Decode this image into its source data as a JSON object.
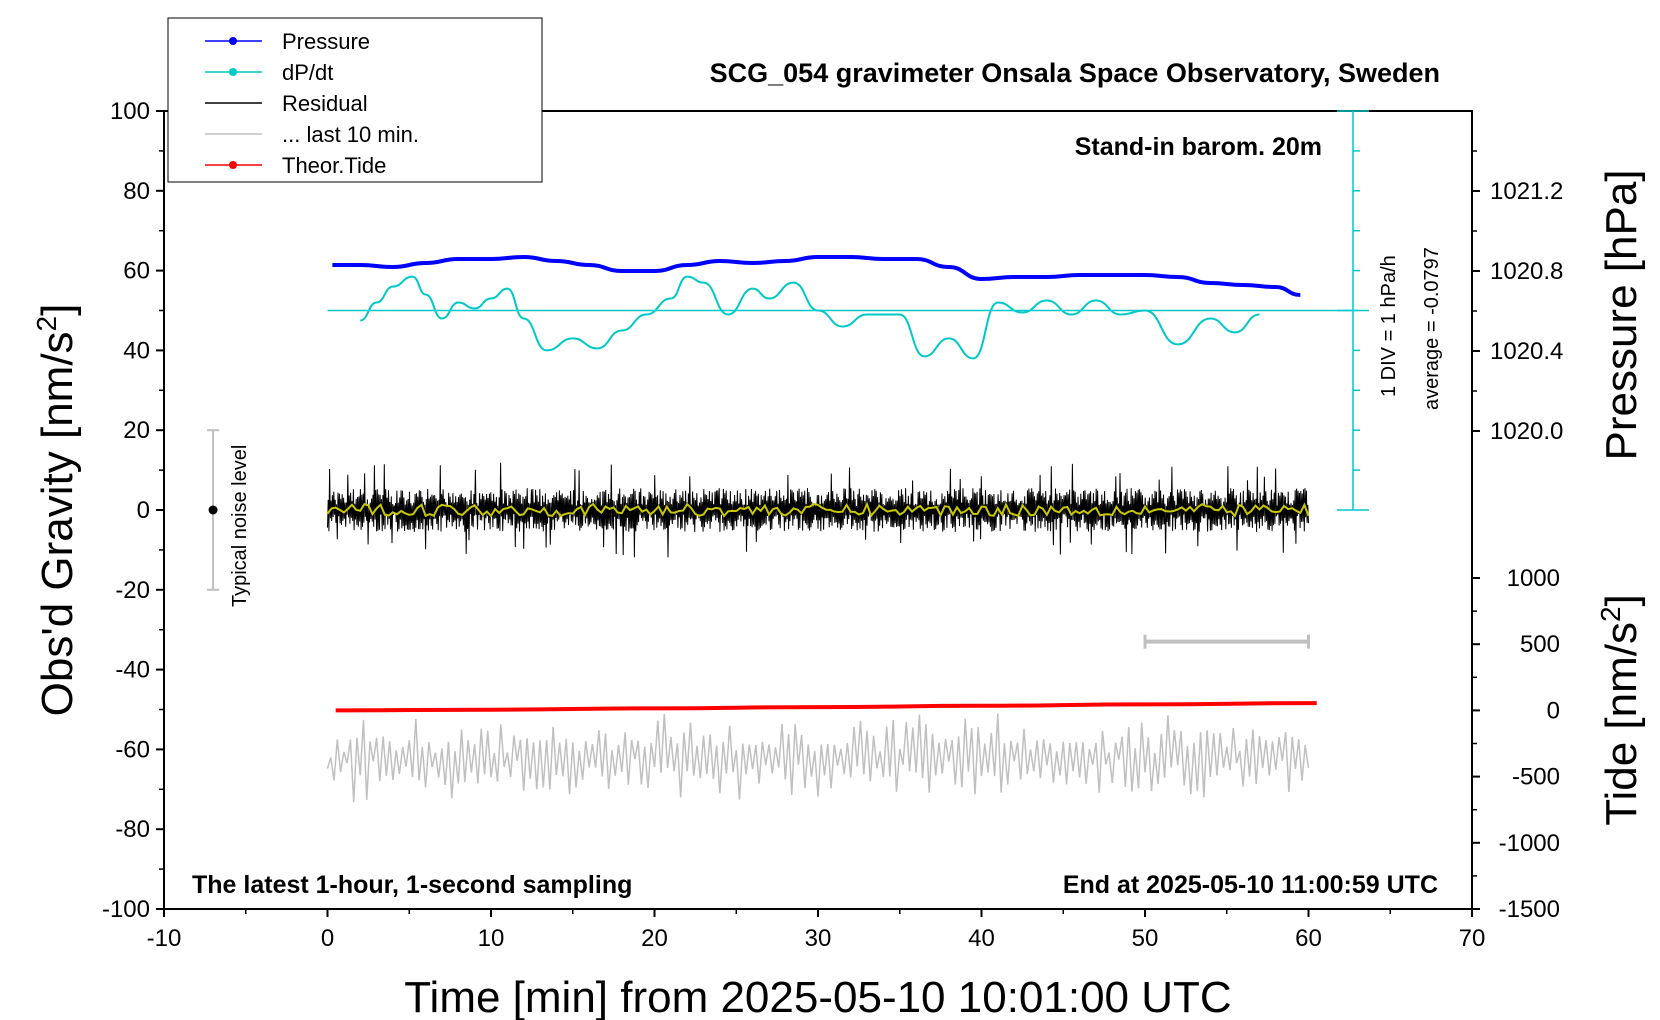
{
  "chart_data": {
    "type": "line",
    "title": "SCG_054 gravimeter Onsala Space Observatory, Sweden",
    "xlabel": "Time [min] from 2025-05-10 10:01:00 UTC",
    "ylabel_left": "Obs'd Gravity [nm/s",
    "ylabel_left_sup": "2",
    "ylabel_left_end": "]",
    "ylabel_right_top": "Pressure [hPa]",
    "ylabel_right_bottom": "Tide [nm/s",
    "ylabel_right_bottom_sup": "2",
    "ylabel_right_bottom_end": "]",
    "xlim": [
      -10,
      70
    ],
    "ylim_left": [
      -100,
      100
    ],
    "x_ticks": [
      "-10",
      "0",
      "10",
      "20",
      "30",
      "40",
      "50",
      "60",
      "70"
    ],
    "y_ticks_left": [
      "100",
      "80",
      "60",
      "40",
      "20",
      "0",
      "-20",
      "-40",
      "-60",
      "-80",
      "-100"
    ],
    "pressure_ticks": [
      "1021.2",
      "1020.8",
      "1020.4",
      "1020.0"
    ],
    "tide_ticks": [
      "1000",
      "500",
      "0",
      "-500",
      "-1000",
      "-1500"
    ],
    "legend": {
      "position": "top-left",
      "entries": [
        {
          "label": "Pressure",
          "color": "#0000ff",
          "marker": true
        },
        {
          "label": "dP/dt",
          "color": "#00c8c8",
          "marker": true
        },
        {
          "label": "Residual",
          "color": "#000000",
          "marker": false
        },
        {
          "label": "... last 10 min.",
          "color": "#c0c0c0",
          "marker": false
        },
        {
          "label": "Theor.Tide",
          "color": "#ff0000",
          "marker": true
        }
      ]
    },
    "annotations": {
      "barometer": "Stand-in barom. 20m",
      "dpdt_scale": "1 DIV = 1 hPa/h",
      "dpdt_average": "average = -0.0797",
      "noise_label": "Typical noise level",
      "bottom_left": "The latest 1-hour, 1-second sampling",
      "bottom_right": "End at 2025-05-10 11:00:59 UTC"
    },
    "series": [
      {
        "name": "Pressure",
        "color": "#0000ff",
        "axis": "pressure",
        "x": [
          0.3,
          2,
          4,
          6,
          8,
          10,
          12,
          14,
          16,
          18,
          20,
          22,
          24,
          26,
          28,
          30,
          32,
          34,
          36,
          38,
          40,
          42,
          44,
          46,
          48,
          50,
          52,
          54,
          56,
          58,
          59.5
        ],
        "values": [
          1020.83,
          1020.83,
          1020.82,
          1020.84,
          1020.86,
          1020.86,
          1020.87,
          1020.85,
          1020.83,
          1020.8,
          1020.8,
          1020.83,
          1020.85,
          1020.84,
          1020.85,
          1020.87,
          1020.87,
          1020.86,
          1020.86,
          1020.82,
          1020.76,
          1020.77,
          1020.77,
          1020.78,
          1020.78,
          1020.78,
          1020.77,
          1020.74,
          1020.73,
          1020.72,
          1020.68
        ]
      },
      {
        "name": "dP/dt",
        "color": "#00c8c8",
        "axis": "left",
        "x": [
          2,
          3,
          4,
          5.2,
          6,
          7,
          8,
          9,
          10,
          11,
          12,
          13.4,
          15,
          16.5,
          18,
          19.5,
          21,
          22,
          23,
          24.5,
          26,
          27,
          28.5,
          30,
          31.5,
          33,
          35,
          36.5,
          38,
          39.5,
          41,
          42.5,
          44,
          45.5,
          47,
          48.5,
          50,
          52,
          54,
          55.5,
          57
        ],
        "values": [
          47.5,
          52,
          56,
          58.5,
          54,
          48,
          52,
          50.5,
          53,
          55.5,
          48,
          40,
          43,
          40.5,
          45,
          49,
          53,
          58.5,
          57,
          49,
          55.5,
          53,
          57,
          50,
          46,
          49,
          49,
          38.5,
          43,
          38,
          52,
          49.5,
          52.5,
          49,
          52.5,
          49,
          50,
          41.5,
          48,
          44.5,
          49
        ]
      },
      {
        "name": "Residual",
        "color": "#000000",
        "axis": "left",
        "x_range": [
          0,
          60
        ],
        "amplitude_typical": 5,
        "amplitude_max": 12
      },
      {
        "name": "... last 10 min.",
        "color": "#c0c0c0",
        "axis": "left",
        "x_range": [
          0,
          60
        ],
        "center": -62,
        "amplitude_typical": 6,
        "amplitude_max": 12
      },
      {
        "name": "Smoothed residual",
        "color": "#c8c800",
        "axis": "left",
        "x_range": [
          0,
          60
        ],
        "amplitude_typical": 1.5
      },
      {
        "name": "Theor.Tide",
        "color": "#ff0000",
        "axis": "tide",
        "x": [
          0.5,
          10,
          20,
          30,
          40,
          50,
          60.5
        ],
        "values": [
          0,
          5,
          15,
          25,
          35,
          45,
          55
        ]
      }
    ],
    "noise_bar": {
      "x": -7,
      "center": 0,
      "half_range": 20
    },
    "window_bar": {
      "x_start": 50,
      "x_end": 60,
      "y": -33
    }
  }
}
